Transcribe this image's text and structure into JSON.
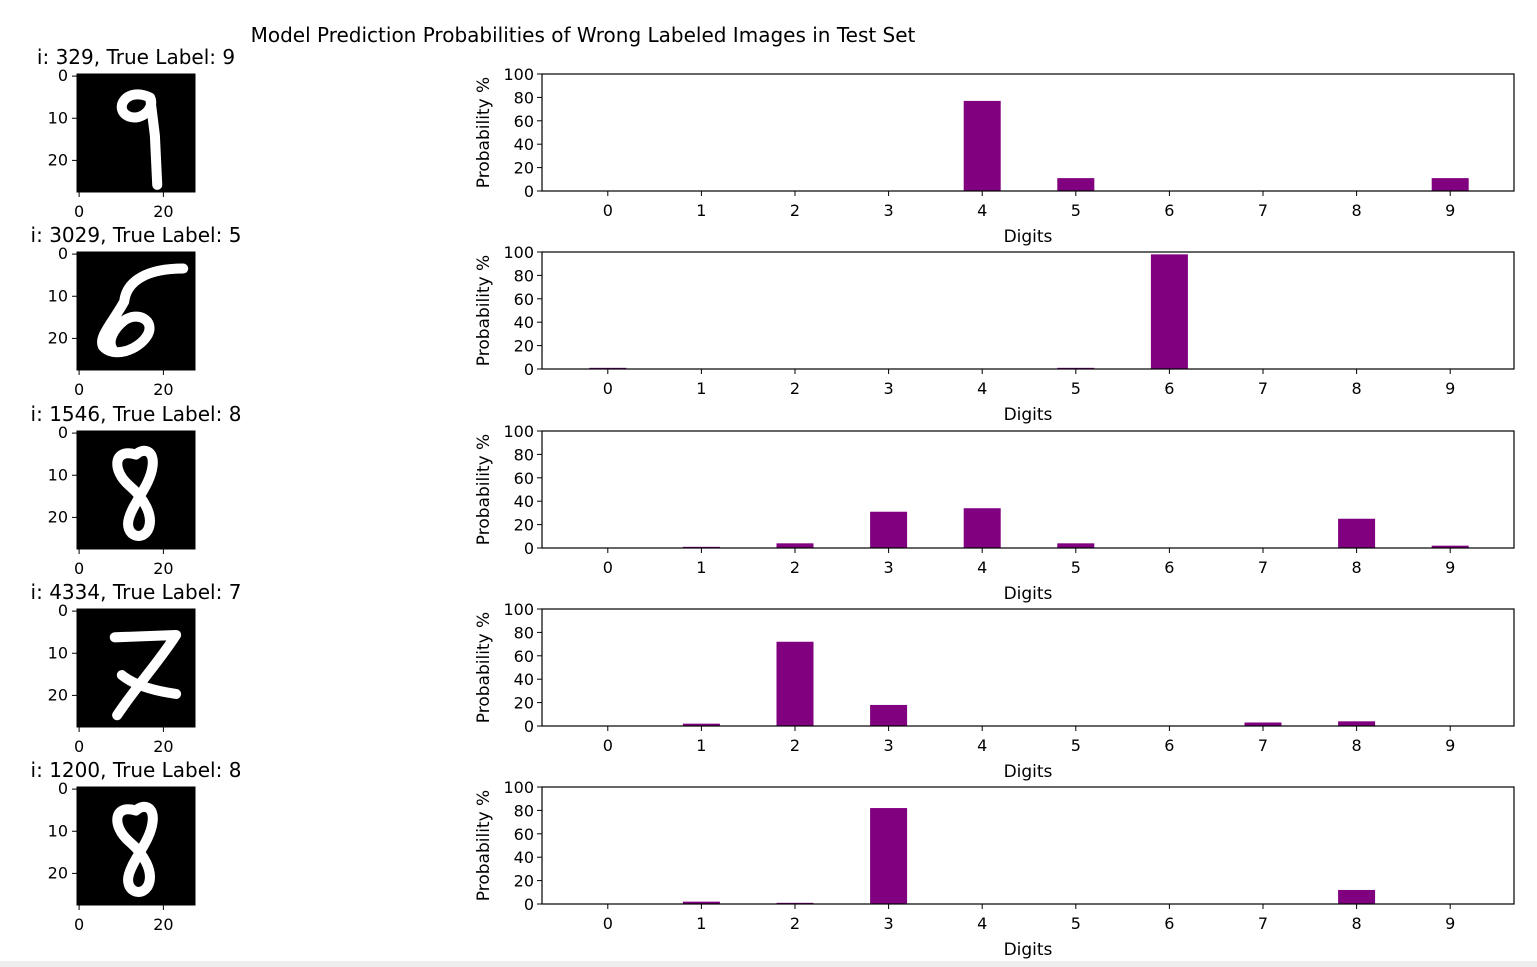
{
  "suptitle": "Model Prediction Probabilities of Wrong Labeled Images in Test Set",
  "colors": {
    "bar": "#800080",
    "image_bg": "#000000",
    "stroke": "#ffffff"
  },
  "image_axes": {
    "xticks": [
      "0",
      "20"
    ],
    "yticks": [
      "0",
      "10",
      "20"
    ]
  },
  "chart_data": [
    {
      "type": "bar",
      "image_title": "i: 329, True Label: 9",
      "digit": "9",
      "categories": [
        "0",
        "1",
        "2",
        "3",
        "4",
        "5",
        "6",
        "7",
        "8",
        "9"
      ],
      "values": [
        0,
        0,
        0,
        0,
        77,
        11,
        0,
        0,
        0,
        11
      ],
      "xlabel": "Digits",
      "ylabel": "Probability %",
      "ylim": [
        0,
        100
      ],
      "yticks": [
        "0",
        "20",
        "40",
        "60",
        "80",
        "100"
      ]
    },
    {
      "type": "bar",
      "image_title": "i: 3029, True Label: 5",
      "digit": "5",
      "categories": [
        "0",
        "1",
        "2",
        "3",
        "4",
        "5",
        "6",
        "7",
        "8",
        "9"
      ],
      "values": [
        1,
        0,
        0,
        0,
        0,
        1,
        98,
        0,
        0,
        0
      ],
      "xlabel": "Digits",
      "ylabel": "Probability %",
      "ylim": [
        0,
        100
      ],
      "yticks": [
        "0",
        "20",
        "40",
        "60",
        "80",
        "100"
      ]
    },
    {
      "type": "bar",
      "image_title": "i: 1546, True Label: 8",
      "digit": "8",
      "categories": [
        "0",
        "1",
        "2",
        "3",
        "4",
        "5",
        "6",
        "7",
        "8",
        "9"
      ],
      "values": [
        0,
        1,
        4,
        31,
        34,
        4,
        0,
        0,
        25,
        2
      ],
      "xlabel": "Digits",
      "ylabel": "Probability %",
      "ylim": [
        0,
        100
      ],
      "yticks": [
        "0",
        "20",
        "40",
        "60",
        "80",
        "100"
      ]
    },
    {
      "type": "bar",
      "image_title": "i: 4334, True Label: 7",
      "digit": "7",
      "categories": [
        "0",
        "1",
        "2",
        "3",
        "4",
        "5",
        "6",
        "7",
        "8",
        "9"
      ],
      "values": [
        0,
        2,
        72,
        18,
        0,
        0,
        0,
        3,
        4,
        0
      ],
      "xlabel": "Digits",
      "ylabel": "Probability %",
      "ylim": [
        0,
        100
      ],
      "yticks": [
        "0",
        "20",
        "40",
        "60",
        "80",
        "100"
      ]
    },
    {
      "type": "bar",
      "image_title": "i: 1200, True Label: 8",
      "digit": "8",
      "categories": [
        "0",
        "1",
        "2",
        "3",
        "4",
        "5",
        "6",
        "7",
        "8",
        "9"
      ],
      "values": [
        0,
        2,
        1,
        82,
        0,
        0,
        0,
        0,
        12,
        0
      ],
      "xlabel": "Digits",
      "ylabel": "Probability %",
      "ylim": [
        0,
        100
      ],
      "yticks": [
        "0",
        "20",
        "40",
        "60",
        "80",
        "100"
      ]
    }
  ]
}
